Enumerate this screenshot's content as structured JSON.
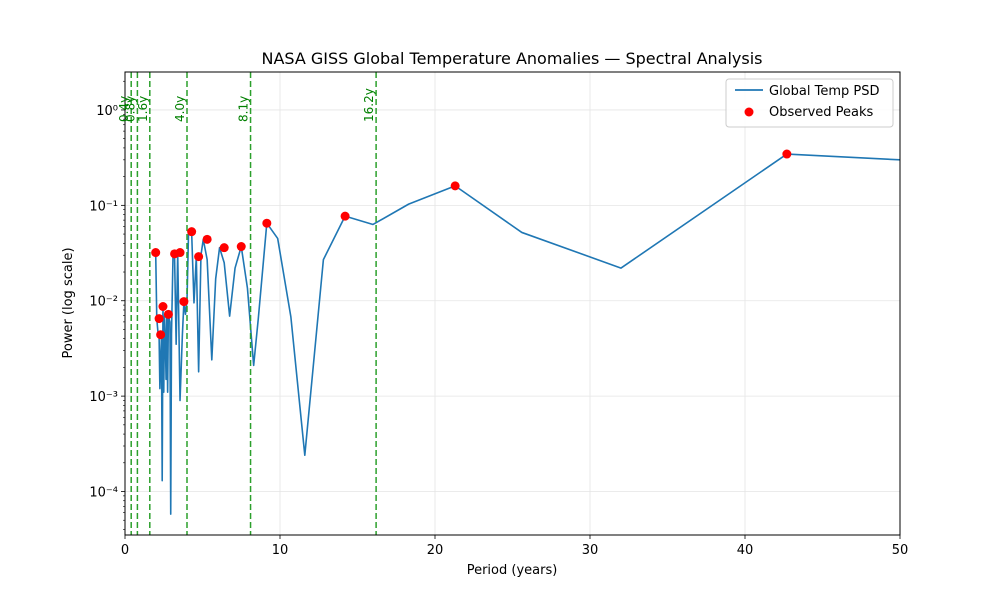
{
  "chart_data": {
    "type": "line",
    "title": "NASA GISS Global Temperature Anomalies — Spectral Analysis",
    "xlabel": "Period (years)",
    "ylabel": "Power (log scale)",
    "xlim": [
      0,
      50
    ],
    "ylim": [
      3.5e-05,
      2.5
    ],
    "yscale": "log",
    "grid": true,
    "legend_position": "top-right",
    "x_ticks": [
      0,
      10,
      20,
      30,
      40,
      50
    ],
    "x_tick_labels": [
      "0",
      "10",
      "20",
      "30",
      "40",
      "50"
    ],
    "y_ticks": [
      0.0001,
      0.001,
      0.01,
      0.1,
      1
    ],
    "y_tick_labels": [
      "10⁻⁴",
      "10⁻³",
      "10⁻²",
      "10⁻¹",
      "10⁰"
    ],
    "colors": {
      "line": "#1f77b4",
      "peaks": "#ff0000",
      "vlines": "#2ca02c",
      "vline_text": "#008000"
    },
    "series": [
      {
        "name": "Global Temp PSD",
        "kind": "line",
        "x": [
          1.98,
          2.05,
          2.12,
          2.2,
          2.25,
          2.3,
          2.35,
          2.4,
          2.45,
          2.5,
          2.55,
          2.6,
          2.65,
          2.7,
          2.75,
          2.8,
          2.9,
          2.95,
          3.0,
          3.1,
          3.2,
          3.3,
          3.4,
          3.55,
          3.7,
          3.8,
          3.9,
          4.0,
          4.1,
          4.3,
          4.45,
          4.6,
          4.75,
          4.9,
          5.05,
          5.3,
          5.6,
          5.85,
          6.1,
          6.4,
          6.75,
          7.1,
          7.5,
          7.9,
          8.3,
          8.6,
          9.15,
          9.85,
          10.7,
          11.6,
          12.8,
          14.2,
          16.0,
          18.3,
          21.3,
          25.6,
          32.0,
          42.7,
          50.0
        ],
        "y": [
          0.032,
          0.0065,
          0.0048,
          0.0042,
          0.0012,
          0.0025,
          0.0041,
          0.00013,
          0.0087,
          0.0011,
          0.0069,
          0.0041,
          0.0015,
          0.0072,
          0.0011,
          0.0069,
          0.006,
          5.8e-05,
          0.0045,
          0.031,
          0.028,
          0.0035,
          0.032,
          0.0009,
          0.0043,
          0.0097,
          0.0072,
          0.01,
          0.053,
          0.052,
          0.0095,
          0.029,
          0.0018,
          0.03,
          0.044,
          0.027,
          0.0024,
          0.017,
          0.036,
          0.025,
          0.0069,
          0.022,
          0.037,
          0.0135,
          0.0021,
          0.0065,
          0.065,
          0.045,
          0.0068,
          0.00024,
          0.027,
          0.077,
          0.063,
          0.103,
          0.16,
          0.052,
          0.022,
          0.345,
          0.3
        ]
      },
      {
        "name": "Observed Peaks",
        "kind": "scatter",
        "x": [
          1.98,
          2.2,
          2.3,
          2.45,
          2.8,
          3.2,
          3.55,
          3.8,
          4.3,
          4.75,
          5.3,
          6.4,
          7.5,
          9.15,
          14.2,
          21.3,
          42.7
        ],
        "y": [
          0.032,
          0.0065,
          0.0044,
          0.0087,
          0.0072,
          0.031,
          0.032,
          0.0098,
          0.053,
          0.029,
          0.044,
          0.036,
          0.037,
          0.065,
          0.077,
          0.16,
          0.345
        ]
      }
    ],
    "vertical_lines": [
      {
        "x": 0.4,
        "label": "0.4y"
      },
      {
        "x": 0.8,
        "label": "0.8y"
      },
      {
        "x": 1.6,
        "label": "1.6y"
      },
      {
        "x": 4.0,
        "label": "4.0y"
      },
      {
        "x": 8.1,
        "label": "8.1y"
      },
      {
        "x": 16.2,
        "label": "16.2y"
      }
    ]
  }
}
